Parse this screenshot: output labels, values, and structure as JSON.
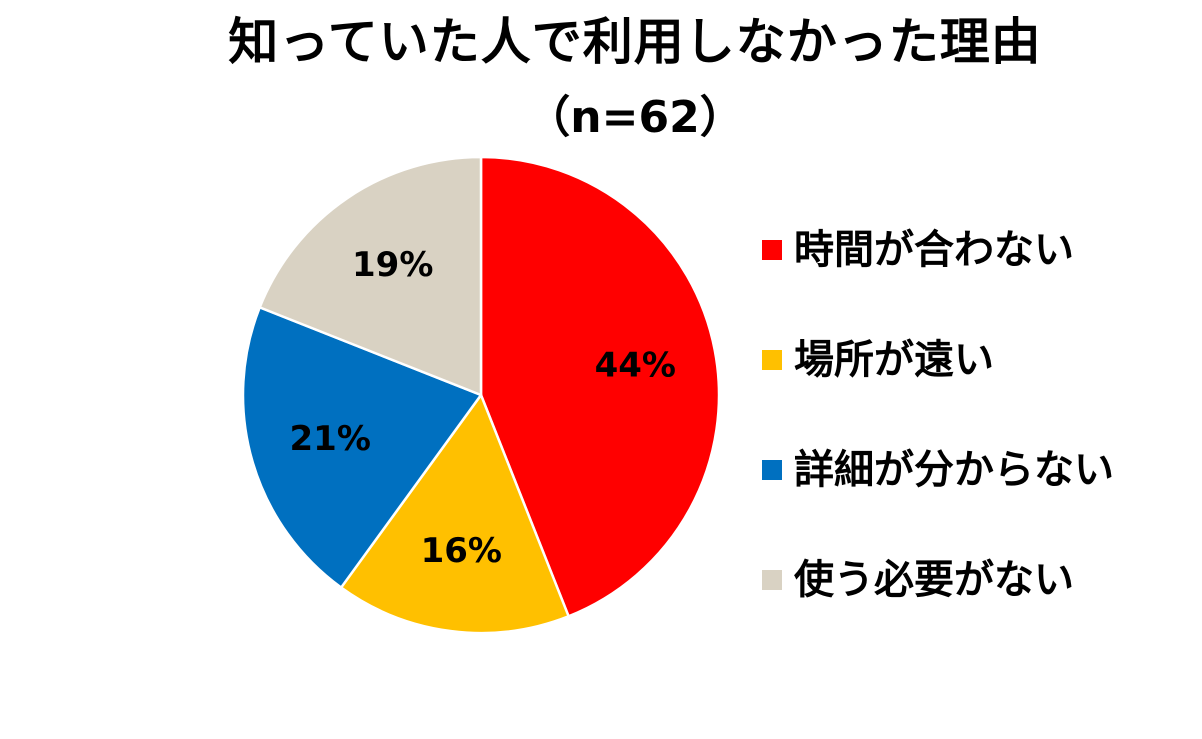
{
  "chart_data": {
    "type": "pie",
    "title": "知っていた人で利用しなかった理由",
    "subtitle": "（n=62）",
    "legend_position": "right",
    "unit": "%",
    "slices": [
      {
        "label": "時間が合わない",
        "value": 44,
        "value_text": "44%",
        "color": "#ff0000"
      },
      {
        "label": "場所が遠い",
        "value": 16,
        "value_text": "16%",
        "color": "#ffc000"
      },
      {
        "label": "詳細が分からない",
        "value": 21,
        "value_text": "21%",
        "color": "#0070c0"
      },
      {
        "label": "使う必要がない",
        "value": 19,
        "value_text": "19%",
        "color": "#d9d2c3"
      }
    ],
    "start_angle_deg": 0,
    "direction": "clockwise",
    "slice_border_color": "#ffffff"
  }
}
